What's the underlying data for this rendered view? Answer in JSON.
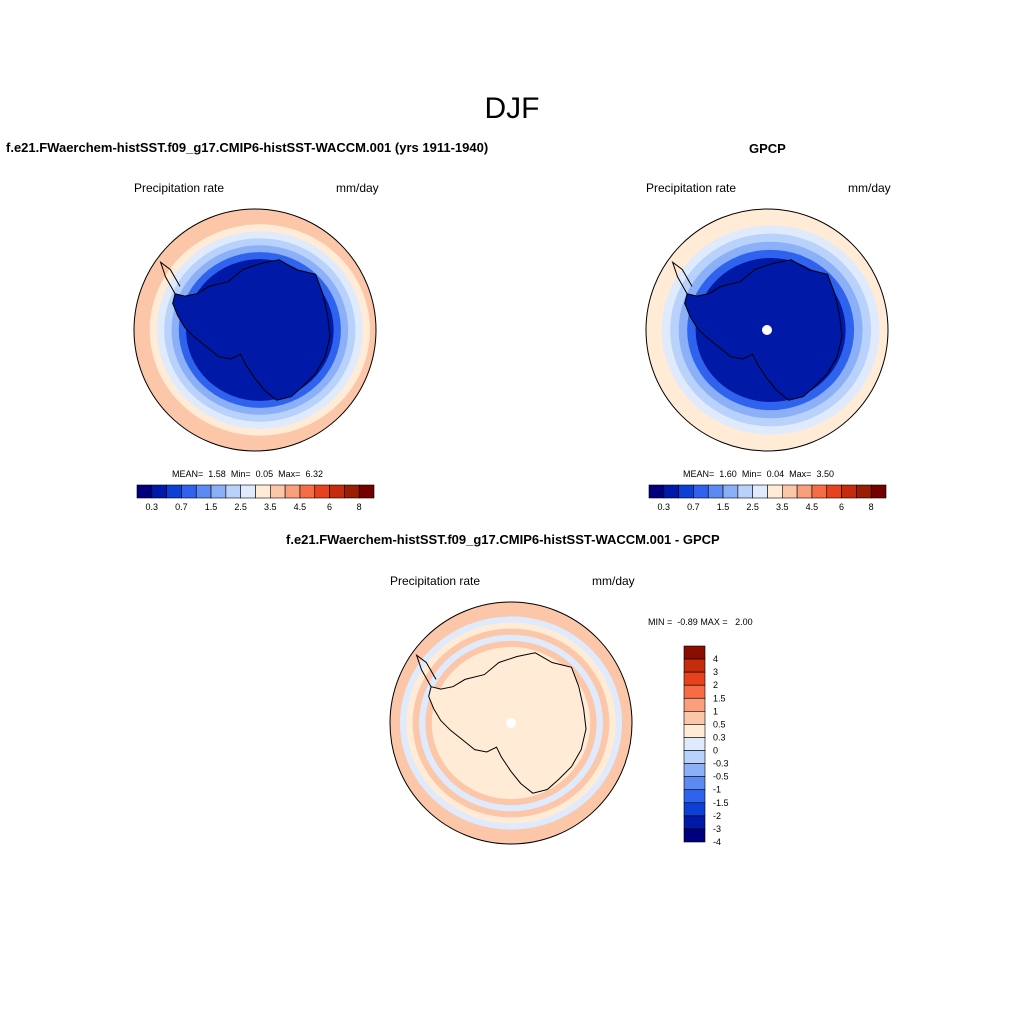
{
  "main_title": "DJF",
  "panels": {
    "model": {
      "title": "f.e21.FWaerchem-histSST.f09_g17.CMIP6-histSST-WACCM.001 (yrs 1911-1940)",
      "variable": "Precipitation rate",
      "units": "mm/day",
      "stats": {
        "mean_label": "MEAN=",
        "mean": "1.58",
        "min_label": "Min=",
        "min": "0.05",
        "max_label": "Max=",
        "max": "6.32"
      }
    },
    "obs": {
      "title": "GPCP",
      "variable": "Precipitation rate",
      "units": "mm/day",
      "stats": {
        "mean_label": "MEAN=",
        "mean": "1.60",
        "min_label": "Min=",
        "min": "0.04",
        "max_label": "Max=",
        "max": "3.50"
      }
    },
    "diff": {
      "title": "f.e21.FWaerchem-histSST.f09_g17.CMIP6-histSST-WACCM.001 - GPCP",
      "variable": "Precipitation rate",
      "units": "mm/day",
      "stats": {
        "min_label": "MIN =",
        "min": "-0.89",
        "max_label": "MAX =",
        "max": "2.00"
      }
    }
  },
  "colors": {
    "abs_scale": [
      "#00007d",
      "#0019a6",
      "#0b3fd6",
      "#2f63ee",
      "#5b8af3",
      "#8bb0f8",
      "#b9d2fb",
      "#dfeafd",
      "#ffebd6",
      "#fcc6a8",
      "#f99f7b",
      "#f56c45",
      "#e8411d",
      "#c42c0c",
      "#9a1d05",
      "#740000"
    ],
    "diff_scale": [
      "#00007d",
      "#0019a6",
      "#0b3fd6",
      "#2f63ee",
      "#5b8af3",
      "#8bb0f8",
      "#b9d2fb",
      "#dfeafd",
      "#ffebd6",
      "#fcc6a8",
      "#f99f7b",
      "#f56c45",
      "#e8411d",
      "#c42c0c",
      "#8a0e00"
    ]
  },
  "chart_data": [
    {
      "type": "heatmap",
      "title": "f.e21.FWaerchem-histSST.f09_g17.CMIP6-histSST-WACCM.001 (yrs 1911-1940)",
      "projection": "south-polar-stereographic",
      "variable": "Precipitation rate",
      "units": "mm/day",
      "mean": 1.58,
      "min": 0.05,
      "max": 6.32,
      "colorbar_levels": [
        0.2,
        0.3,
        0.5,
        0.7,
        1,
        1.5,
        2,
        2.5,
        3,
        3.5,
        4,
        4.5,
        5,
        6,
        7,
        8
      ],
      "colorbar_tick_labels": [
        "0.3",
        "0.7",
        "1.5",
        "2.5",
        "3.5",
        "4.5",
        "6",
        "8"
      ],
      "field_rings_inner_to_outer": [
        0.2,
        0.25,
        0.5,
        1.0,
        1.5,
        2.0,
        2.5,
        3.0
      ]
    },
    {
      "type": "heatmap",
      "title": "GPCP",
      "projection": "south-polar-stereographic",
      "variable": "Precipitation rate",
      "units": "mm/day",
      "mean": 1.6,
      "min": 0.04,
      "max": 3.5,
      "colorbar_levels": [
        0.2,
        0.3,
        0.5,
        0.7,
        1,
        1.5,
        2,
        2.5,
        3,
        3.5,
        4,
        4.5,
        5,
        6,
        7,
        8
      ],
      "colorbar_tick_labels": [
        "0.3",
        "0.7",
        "1.5",
        "2.5",
        "3.5",
        "4.5",
        "6",
        "8"
      ],
      "field_rings_inner_to_outer": [
        0.2,
        0.25,
        0.5,
        1.0,
        1.5,
        2.0,
        2.5
      ]
    },
    {
      "type": "heatmap",
      "title": "f.e21.FWaerchem-histSST.f09_g17.CMIP6-histSST-WACCM.001 - GPCP",
      "projection": "south-polar-stereographic",
      "variable": "Precipitation rate",
      "units": "mm/day",
      "min": -0.89,
      "max": 2.0,
      "colorbar_levels": [
        -4,
        -3,
        -2,
        -1.5,
        -1,
        -0.5,
        -0.3,
        0,
        0.3,
        0.5,
        1,
        1.5,
        2,
        3,
        4
      ],
      "colorbar_tick_labels": [
        "4",
        "3",
        "2",
        "1.5",
        "1",
        "0.5",
        "0.3",
        "0",
        "-0.3",
        "-0.5",
        "-1",
        "-1.5",
        "-2",
        "-3",
        "-4"
      ],
      "field_rings_inner_to_outer": [
        0.1,
        0.1,
        0.1,
        0.4,
        -0.1,
        0.35,
        0.1,
        -0.1,
        0.45
      ]
    }
  ]
}
